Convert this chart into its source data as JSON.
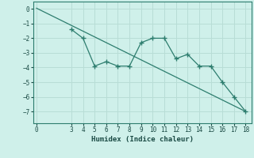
{
  "xlabel": "Humidex (Indice chaleur)",
  "line_color": "#2d7d6e",
  "bg_color": "#cff0ea",
  "grid_color": "#b8ddd6",
  "straight_line": {
    "x": [
      0,
      18
    ],
    "y": [
      0.05,
      -7.0
    ]
  },
  "zigzag_line": {
    "x": [
      3,
      4,
      5,
      6,
      7,
      8,
      9,
      10,
      11,
      12,
      13,
      14,
      15,
      16,
      17,
      18
    ],
    "y": [
      -1.4,
      -2.0,
      -3.9,
      -3.6,
      -3.9,
      -3.9,
      -2.3,
      -2.0,
      -2.0,
      -3.4,
      -3.1,
      -3.9,
      -3.9,
      -5.0,
      -6.0,
      -7.0
    ]
  },
  "xlim": [
    -0.3,
    18.5
  ],
  "ylim": [
    -7.8,
    0.5
  ],
  "yticks": [
    0,
    -1,
    -2,
    -3,
    -4,
    -5,
    -6,
    -7
  ],
  "xticks": [
    0,
    3,
    4,
    5,
    6,
    7,
    8,
    9,
    10,
    11,
    12,
    13,
    14,
    15,
    16,
    17,
    18
  ],
  "tick_fontsize": 5.5,
  "xlabel_fontsize": 6.5
}
